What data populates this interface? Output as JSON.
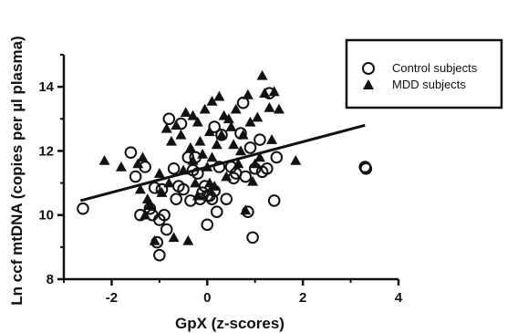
{
  "chart_data": {
    "type": "scatter",
    "title": "",
    "xlabel": "GpX (z-scores)",
    "ylabel": "Ln ccf mtDNA (copies per µl plasma)",
    "xlim": [
      -3,
      4
    ],
    "ylim": [
      8,
      15
    ],
    "xticks": [
      -2,
      0,
      2,
      4
    ],
    "yticks": [
      8,
      10,
      12,
      14
    ],
    "grid": false,
    "legend_position": "top-right",
    "series": [
      {
        "name": "Control subjects",
        "marker": "open-circle",
        "color": "#111111",
        "x": [
          -2.6,
          -1.6,
          -1.5,
          -1.4,
          -1.3,
          -1.2,
          -1.15,
          -1.1,
          -1.05,
          -1.0,
          -1.0,
          -0.95,
          -0.9,
          -0.85,
          -0.8,
          -0.7,
          -0.65,
          -0.6,
          -0.55,
          -0.5,
          -0.4,
          -0.35,
          -0.3,
          -0.25,
          -0.2,
          -0.15,
          -0.1,
          -0.05,
          0.0,
          0.0,
          0.05,
          0.1,
          0.15,
          0.15,
          0.2,
          0.25,
          0.3,
          0.4,
          0.5,
          0.55,
          0.6,
          0.7,
          0.75,
          0.8,
          0.85,
          0.9,
          0.95,
          1.0,
          1.1,
          1.15,
          1.25,
          1.3,
          1.4,
          1.45,
          3.3,
          3.32
        ],
        "y": [
          10.2,
          11.95,
          11.2,
          10.0,
          11.5,
          10.2,
          10.0,
          10.85,
          9.15,
          8.75,
          9.85,
          10.8,
          10.0,
          9.55,
          13.0,
          11.45,
          10.5,
          10.9,
          12.85,
          10.8,
          11.8,
          10.45,
          11.4,
          11.8,
          11.3,
          10.5,
          10.7,
          10.9,
          9.7,
          10.6,
          10.6,
          10.5,
          10.75,
          12.75,
          10.1,
          11.5,
          12.5,
          10.5,
          11.5,
          11.15,
          11.3,
          12.55,
          13.5,
          11.2,
          10.1,
          12.1,
          9.3,
          11.45,
          12.35,
          11.35,
          11.45,
          13.8,
          10.45,
          11.8,
          11.5,
          11.45
        ]
      },
      {
        "name": "MDD subjects",
        "marker": "filled-triangle",
        "color": "#111111",
        "x": [
          -2.15,
          -1.8,
          -1.45,
          -1.4,
          -1.35,
          -1.3,
          -1.25,
          -1.2,
          -1.1,
          -1.0,
          -0.95,
          -0.85,
          -0.8,
          -0.75,
          -0.7,
          -0.65,
          -0.55,
          -0.5,
          -0.45,
          -0.4,
          -0.35,
          -0.3,
          -0.3,
          -0.25,
          -0.2,
          -0.2,
          -0.15,
          -0.1,
          -0.05,
          0.0,
          0.05,
          0.05,
          0.1,
          0.1,
          0.15,
          0.2,
          0.25,
          0.3,
          0.35,
          0.4,
          0.45,
          0.5,
          0.55,
          0.6,
          0.65,
          0.7,
          0.75,
          0.8,
          0.85,
          0.9,
          0.95,
          1.0,
          1.05,
          1.1,
          1.15,
          1.2,
          1.3,
          1.35,
          1.4,
          1.5,
          1.85
        ],
        "y": [
          11.7,
          11.5,
          11.6,
          10.8,
          11.8,
          10.0,
          10.5,
          10.3,
          9.2,
          11.3,
          10.7,
          12.7,
          11.0,
          12.3,
          9.3,
          12.8,
          12.5,
          11.4,
          13.2,
          9.2,
          12.1,
          11.7,
          13.1,
          11.0,
          12.9,
          10.6,
          12.3,
          11.9,
          13.3,
          11.5,
          11.0,
          12.6,
          11.8,
          13.55,
          10.9,
          12.2,
          13.7,
          12.5,
          13.1,
          11.2,
          13.0,
          12.75,
          12.2,
          13.3,
          11.6,
          12.0,
          12.5,
          10.15,
          13.75,
          12.9,
          11.05,
          11.6,
          13.05,
          11.8,
          14.35,
          13.8,
          13.35,
          12.35,
          13.85,
          13.3,
          11.7
        ]
      }
    ],
    "regression_line": {
      "x": [
        -2.65,
        3.3
      ],
      "y": [
        10.45,
        12.8
      ]
    }
  }
}
